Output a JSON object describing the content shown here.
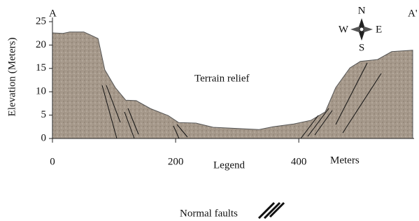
{
  "chart_data": {
    "type": "area",
    "y_label": "Elevation (Meters)",
    "x_label": "Meters",
    "annotation": "Terrain relief",
    "corner_labels": [
      "A",
      "A'"
    ],
    "compass": {
      "north": "N",
      "east": "E",
      "south": "S",
      "west": "W"
    },
    "legend": {
      "title": "Legend",
      "items": [
        "Normal faults"
      ]
    },
    "color": "#a6998b",
    "x": [
      0,
      17,
      28,
      51,
      74,
      85,
      102,
      119,
      136,
      159,
      188,
      205,
      233,
      261,
      290,
      335,
      358,
      392,
      420,
      443,
      460,
      483,
      500,
      528,
      551,
      585
    ],
    "values": [
      22.6,
      22.5,
      22.8,
      22.8,
      21.4,
      14.7,
      10.9,
      8.2,
      8.1,
      6.4,
      4.9,
      3.4,
      3.3,
      2.4,
      2.2,
      1.9,
      2.5,
      3.1,
      3.9,
      5.7,
      10.9,
      15.1,
      16.5,
      16.9,
      18.6,
      18.9
    ],
    "xlim": [
      0,
      585
    ],
    "ylim": [
      0,
      25
    ],
    "xticks": [
      0,
      200,
      400
    ],
    "yticks": [
      0,
      5,
      10,
      15,
      20,
      25
    ]
  }
}
